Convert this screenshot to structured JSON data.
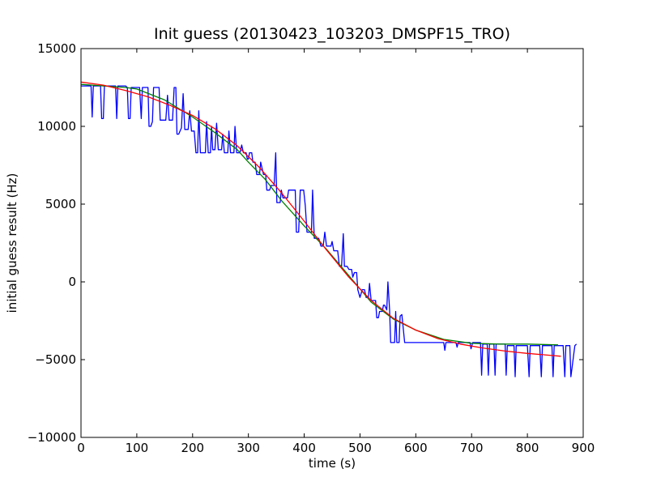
{
  "chart_data": {
    "type": "line",
    "title": "Init guess (20130423_103203_DMSPF15_TRO)",
    "xlabel": "time (s)",
    "ylabel": "initial guess result (Hz)",
    "xlim": [
      0,
      900
    ],
    "ylim": [
      -10000,
      15000
    ],
    "x_ticks": [
      0,
      100,
      200,
      300,
      400,
      500,
      600,
      700,
      800,
      900
    ],
    "y_ticks": [
      -10000,
      -5000,
      0,
      5000,
      10000,
      15000
    ],
    "grid": false,
    "legend": "none",
    "series": [
      {
        "color": "#0000ff",
        "points": [
          [
            0,
            12600
          ],
          [
            18,
            12600
          ],
          [
            20,
            10600
          ],
          [
            22,
            12600
          ],
          [
            35,
            12600
          ],
          [
            37,
            10500
          ],
          [
            40,
            10500
          ],
          [
            42,
            12600
          ],
          [
            50,
            12600
          ],
          [
            55,
            12600
          ],
          [
            62,
            12600
          ],
          [
            64,
            10500
          ],
          [
            66,
            12600
          ],
          [
            80,
            12600
          ],
          [
            83,
            12500
          ],
          [
            85,
            10500
          ],
          [
            88,
            10500
          ],
          [
            90,
            12500
          ],
          [
            100,
            12500
          ],
          [
            105,
            12500
          ],
          [
            108,
            10500
          ],
          [
            110,
            12500
          ],
          [
            120,
            12500
          ],
          [
            122,
            10000
          ],
          [
            125,
            10000
          ],
          [
            128,
            10300
          ],
          [
            130,
            12500
          ],
          [
            140,
            12500
          ],
          [
            142,
            10400
          ],
          [
            146,
            10400
          ],
          [
            152,
            10400
          ],
          [
            155,
            12000
          ],
          [
            158,
            10400
          ],
          [
            164,
            10400
          ],
          [
            167,
            12500
          ],
          [
            170,
            12500
          ],
          [
            172,
            9500
          ],
          [
            175,
            9500
          ],
          [
            180,
            9900
          ],
          [
            183,
            12100
          ],
          [
            186,
            9800
          ],
          [
            192,
            9800
          ],
          [
            195,
            11000
          ],
          [
            198,
            9700
          ],
          [
            203,
            9700
          ],
          [
            206,
            8300
          ],
          [
            209,
            8300
          ],
          [
            211,
            11000
          ],
          [
            214,
            8300
          ],
          [
            223,
            8300
          ],
          [
            225,
            10300
          ],
          [
            228,
            8300
          ],
          [
            232,
            8300
          ],
          [
            234,
            10000
          ],
          [
            236,
            8500
          ],
          [
            240,
            8500
          ],
          [
            243,
            10200
          ],
          [
            246,
            8500
          ],
          [
            252,
            8500
          ],
          [
            254,
            9500
          ],
          [
            257,
            8300
          ],
          [
            263,
            8300
          ],
          [
            265,
            9700
          ],
          [
            268,
            8300
          ],
          [
            274,
            8300
          ],
          [
            276,
            10000
          ],
          [
            279,
            8300
          ],
          [
            285,
            8300
          ],
          [
            288,
            8800
          ],
          [
            291,
            8300
          ],
          [
            296,
            8300
          ],
          [
            298,
            7900
          ],
          [
            300,
            7900
          ],
          [
            302,
            8300
          ],
          [
            306,
            8300
          ],
          [
            308,
            7700
          ],
          [
            312,
            7700
          ],
          [
            315,
            6900
          ],
          [
            320,
            6900
          ],
          [
            322,
            7700
          ],
          [
            327,
            6900
          ],
          [
            331,
            6900
          ],
          [
            333,
            5900
          ],
          [
            338,
            5900
          ],
          [
            341,
            6200
          ],
          [
            346,
            6200
          ],
          [
            349,
            8300
          ],
          [
            351,
            5100
          ],
          [
            357,
            5100
          ],
          [
            359,
            5900
          ],
          [
            362,
            5400
          ],
          [
            370,
            5400
          ],
          [
            372,
            5900
          ],
          [
            384,
            5900
          ],
          [
            386,
            3200
          ],
          [
            390,
            3200
          ],
          [
            393,
            5900
          ],
          [
            399,
            5900
          ],
          [
            402,
            4900
          ],
          [
            405,
            3200
          ],
          [
            408,
            3200
          ],
          [
            413,
            3200
          ],
          [
            415,
            5900
          ],
          [
            418,
            2800
          ],
          [
            422,
            2800
          ],
          [
            426,
            2800
          ],
          [
            430,
            2300
          ],
          [
            434,
            2300
          ],
          [
            437,
            3200
          ],
          [
            440,
            2300
          ],
          [
            448,
            2300
          ],
          [
            450,
            2600
          ],
          [
            453,
            2000
          ],
          [
            460,
            2000
          ],
          [
            463,
            1000
          ],
          [
            467,
            1000
          ],
          [
            470,
            3100
          ],
          [
            472,
            1000
          ],
          [
            477,
            1000
          ],
          [
            480,
            800
          ],
          [
            485,
            800
          ],
          [
            487,
            300
          ],
          [
            490,
            600
          ],
          [
            494,
            600
          ],
          [
            496,
            -500
          ],
          [
            500,
            -1000
          ],
          [
            504,
            -500
          ],
          [
            508,
            -500
          ],
          [
            511,
            -1000
          ],
          [
            515,
            -1000
          ],
          [
            517,
            -100
          ],
          [
            520,
            -1200
          ],
          [
            525,
            -1200
          ],
          [
            528,
            -1200
          ],
          [
            530,
            -2300
          ],
          [
            533,
            -2300
          ],
          [
            535,
            -1900
          ],
          [
            540,
            -1900
          ],
          [
            542,
            -1500
          ],
          [
            544,
            -1500
          ],
          [
            548,
            -1800
          ],
          [
            550,
            0
          ],
          [
            553,
            -1800
          ],
          [
            555,
            -3900
          ],
          [
            562,
            -3900
          ],
          [
            564,
            -1900
          ],
          [
            566,
            -3900
          ],
          [
            570,
            -3900
          ],
          [
            572,
            -2200
          ],
          [
            575,
            -2100
          ],
          [
            580,
            -3900
          ],
          [
            600,
            -3900
          ],
          [
            650,
            -3900
          ],
          [
            652,
            -4400
          ],
          [
            654,
            -3900
          ],
          [
            672,
            -3900
          ],
          [
            674,
            -4200
          ],
          [
            676,
            -3900
          ],
          [
            690,
            -3900
          ],
          [
            697,
            -3900
          ],
          [
            699,
            -4300
          ],
          [
            702,
            -3900
          ],
          [
            716,
            -3900
          ],
          [
            718,
            -6000
          ],
          [
            720,
            -4000
          ],
          [
            728,
            -4000
          ],
          [
            730,
            -6000
          ],
          [
            732,
            -4000
          ],
          [
            740,
            -4000
          ],
          [
            742,
            -6000
          ],
          [
            744,
            -4000
          ],
          [
            760,
            -4000
          ],
          [
            762,
            -6000
          ],
          [
            764,
            -4100
          ],
          [
            776,
            -4100
          ],
          [
            778,
            -6100
          ],
          [
            780,
            -4100
          ],
          [
            800,
            -4100
          ],
          [
            803,
            -6100
          ],
          [
            805,
            -4100
          ],
          [
            822,
            -4100
          ],
          [
            825,
            -6100
          ],
          [
            827,
            -4100
          ],
          [
            844,
            -4100
          ],
          [
            846,
            -6100
          ],
          [
            848,
            -4100
          ],
          [
            864,
            -4100
          ],
          [
            867,
            -6100
          ],
          [
            869,
            -4100
          ],
          [
            876,
            -4100
          ],
          [
            878,
            -6100
          ],
          [
            885,
            -4100
          ],
          [
            888,
            -4000
          ]
        ]
      },
      {
        "color": "#008000",
        "points": [
          [
            0,
            12700
          ],
          [
            40,
            12600
          ],
          [
            80,
            12500
          ],
          [
            100,
            12400
          ],
          [
            150,
            11700
          ],
          [
            200,
            10600
          ],
          [
            240,
            9600
          ],
          [
            280,
            8500
          ],
          [
            300,
            7700
          ],
          [
            330,
            6600
          ],
          [
            360,
            5200
          ],
          [
            400,
            3600
          ],
          [
            440,
            2100
          ],
          [
            480,
            400
          ],
          [
            520,
            -1300
          ],
          [
            560,
            -2400
          ],
          [
            600,
            -3100
          ],
          [
            650,
            -3700
          ],
          [
            700,
            -3950
          ],
          [
            750,
            -4000
          ],
          [
            800,
            -4000
          ],
          [
            855,
            -4050
          ]
        ]
      },
      {
        "color": "#ff0000",
        "points": [
          [
            0,
            12850
          ],
          [
            40,
            12650
          ],
          [
            80,
            12300
          ],
          [
            120,
            11900
          ],
          [
            160,
            11350
          ],
          [
            200,
            10700
          ],
          [
            240,
            9850
          ],
          [
            280,
            8750
          ],
          [
            320,
            7350
          ],
          [
            360,
            5700
          ],
          [
            400,
            3900
          ],
          [
            440,
            2050
          ],
          [
            480,
            300
          ],
          [
            520,
            -1200
          ],
          [
            560,
            -2350
          ],
          [
            600,
            -3100
          ],
          [
            640,
            -3650
          ],
          [
            680,
            -4000
          ],
          [
            720,
            -4250
          ],
          [
            760,
            -4450
          ],
          [
            800,
            -4600
          ],
          [
            840,
            -4720
          ],
          [
            860,
            -4780
          ]
        ]
      }
    ]
  }
}
